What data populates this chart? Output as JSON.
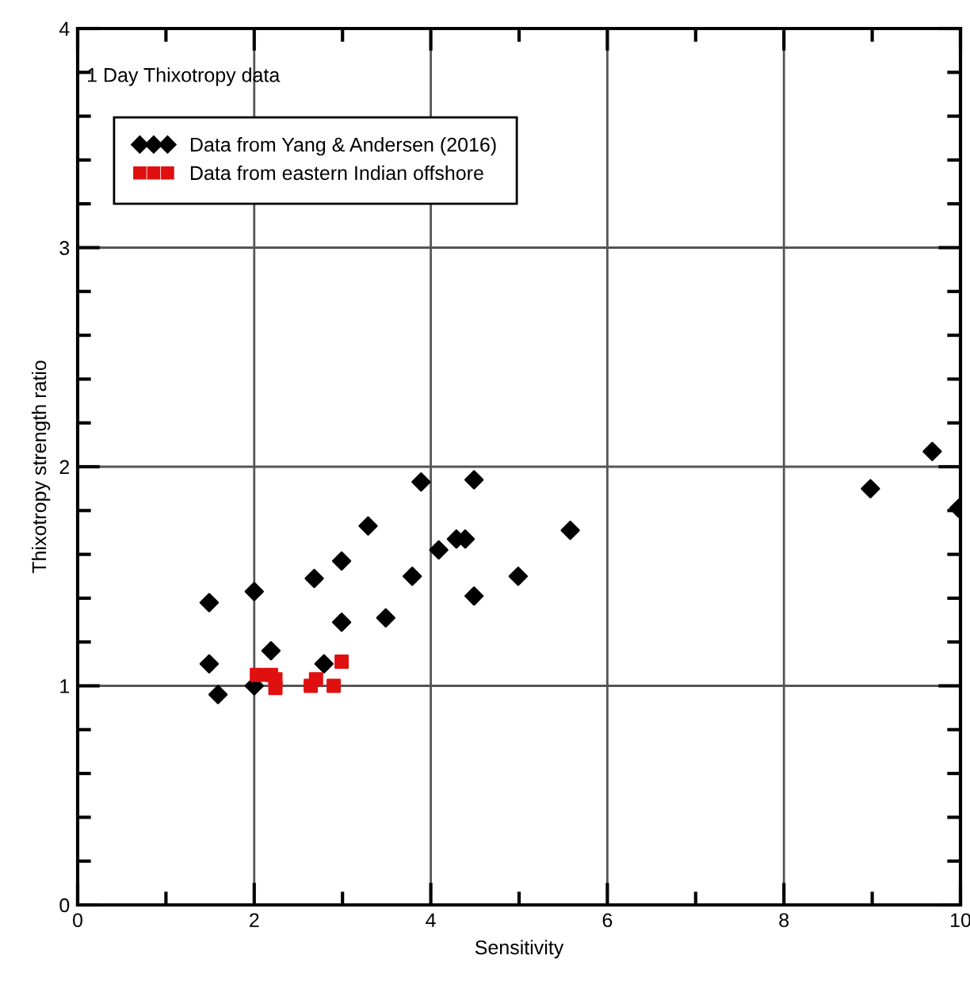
{
  "chart_data": {
    "type": "scatter",
    "title": "1 Day Thixotropy data",
    "xlabel": "Sensitivity",
    "ylabel": "Thixotropy strength ratio",
    "xlim": [
      0,
      10
    ],
    "xticks": [
      0,
      2,
      4,
      6,
      8,
      10
    ],
    "ylim": [
      0,
      4
    ],
    "yticks": [
      0,
      1,
      2,
      3,
      4
    ],
    "grid": true,
    "legend": "top left",
    "series": [
      {
        "name": "Data from Yang & Andersen (2016)",
        "color": "#000000",
        "marker": "diamond",
        "x": [
          1.49,
          1.49,
          1.59,
          2.0,
          2.0,
          2.19,
          2.68,
          2.79,
          2.99,
          2.99,
          3.29,
          3.49,
          3.79,
          3.89,
          4.09,
          4.29,
          4.39,
          4.49,
          4.49,
          4.99,
          5.58,
          8.98,
          9.68,
          9.98
        ],
        "values": [
          1.38,
          1.1,
          0.96,
          1.43,
          1.0,
          1.16,
          1.49,
          1.1,
          1.57,
          1.29,
          1.73,
          1.31,
          1.5,
          1.93,
          1.62,
          1.67,
          1.67,
          1.94,
          1.41,
          1.5,
          1.71,
          1.9,
          2.07,
          1.81
        ]
      },
      {
        "name": "Data from eastern Indian offshore",
        "color": "#e01010",
        "marker": "square",
        "x": [
          2.03,
          2.19,
          2.24,
          2.24,
          2.64,
          2.7,
          2.9,
          2.99
        ],
        "values": [
          1.05,
          1.05,
          1.03,
          0.99,
          1.0,
          1.03,
          1.0,
          1.11
        ]
      }
    ]
  }
}
